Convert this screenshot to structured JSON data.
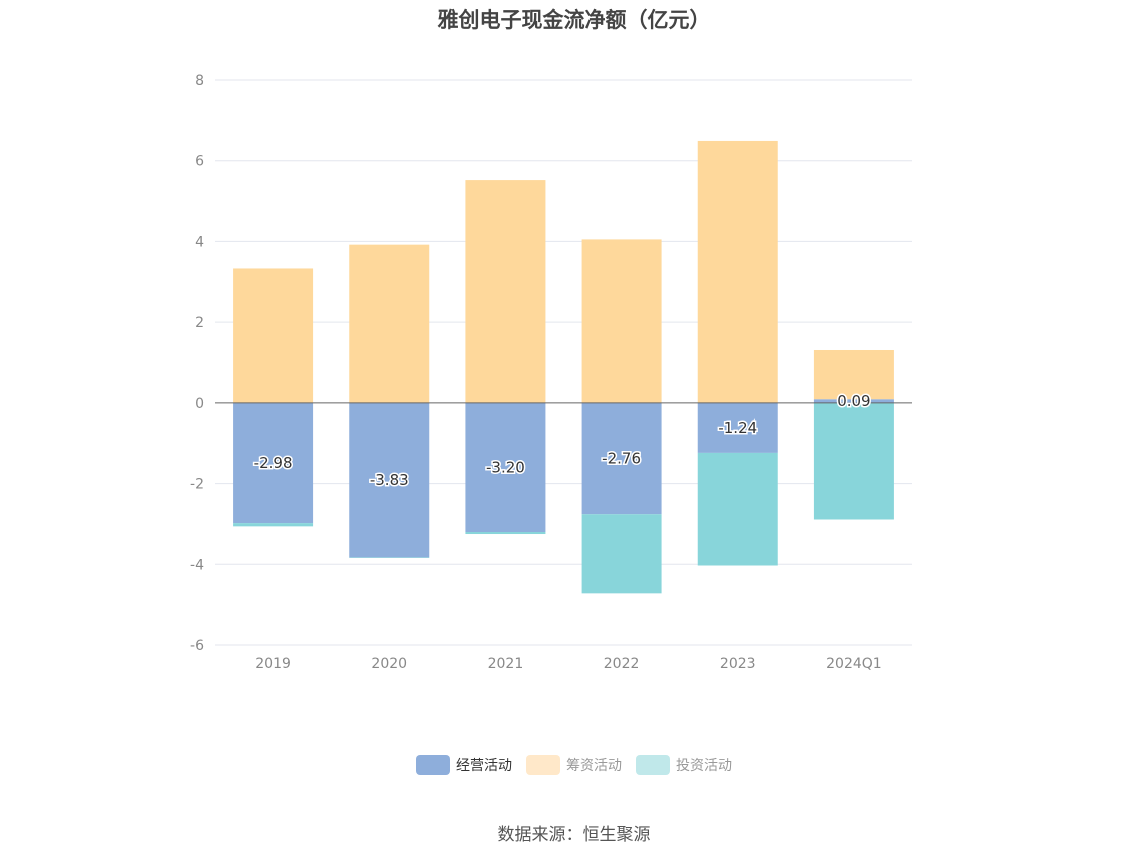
{
  "chart_data": {
    "type": "bar",
    "title": "雅创电子现金流净额（亿元）",
    "categories": [
      "2019",
      "2020",
      "2021",
      "2022",
      "2023",
      "2024Q1"
    ],
    "series": [
      {
        "name": "经营活动",
        "color": "#8eaedb",
        "values": [
          -2.98,
          -3.83,
          -3.2,
          -2.76,
          -1.24,
          0.09
        ]
      },
      {
        "name": "筹资活动",
        "color": "#fed89b",
        "values": [
          3.33,
          3.92,
          5.52,
          4.05,
          6.49,
          1.22
        ]
      },
      {
        "name": "投资活动",
        "color": "#88d5da",
        "values": [
          -0.08,
          -0.01,
          -0.05,
          -1.96,
          -2.79,
          -2.89
        ]
      }
    ],
    "data_labels": [
      "-2.98",
      "-3.83",
      "-3.20",
      "-2.76",
      "-1.24",
      "0.09"
    ],
    "yticks": [
      "8",
      "6",
      "4",
      "2",
      "0",
      "-2",
      "-4",
      "-6"
    ],
    "ylim": [
      -6,
      8
    ],
    "stacked": true,
    "grid": true,
    "legend_position": "bottom"
  },
  "legend": [
    {
      "label": "经营活动",
      "color": "#8eaedb"
    },
    {
      "label": "筹资活动",
      "color": "#ffe8c9"
    },
    {
      "label": "投资活动",
      "color": "#c0e8ea"
    }
  ],
  "source": "数据来源：恒生聚源"
}
